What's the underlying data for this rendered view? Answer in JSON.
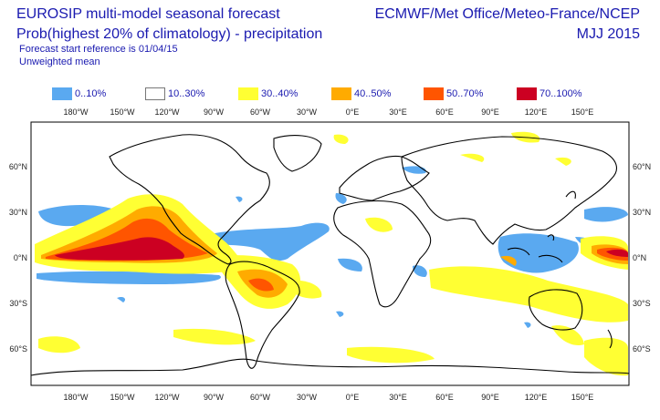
{
  "header": {
    "title_left": "EUROSIP multi-model seasonal forecast",
    "subtitle_left": "Prob(highest 20% of climatology) - precipitation",
    "line3": "Forecast start reference is 01/04/15",
    "line4": "Unweighted mean",
    "title_right": "ECMWF/Met Office/Meteo-France/NCEP",
    "period": "MJJ 2015"
  },
  "legend": [
    {
      "label": "0..10%",
      "color": "#5aa9f0"
    },
    {
      "label": "10..30%",
      "color": "#ffffff"
    },
    {
      "label": "30..40%",
      "color": "#ffff33"
    },
    {
      "label": "40..50%",
      "color": "#ffab00"
    },
    {
      "label": "50..70%",
      "color": "#ff5500"
    },
    {
      "label": "70..100%",
      "color": "#cc0022"
    }
  ],
  "axes": {
    "lon_labels": [
      "180°W",
      "150°W",
      "120°W",
      "90°W",
      "60°W",
      "30°W",
      "0°E",
      "30°E",
      "60°E",
      "90°E",
      "120°E",
      "150°E"
    ],
    "lat_labels": [
      "60°N",
      "30°N",
      "0°N",
      "30°S",
      "60°S"
    ]
  }
}
